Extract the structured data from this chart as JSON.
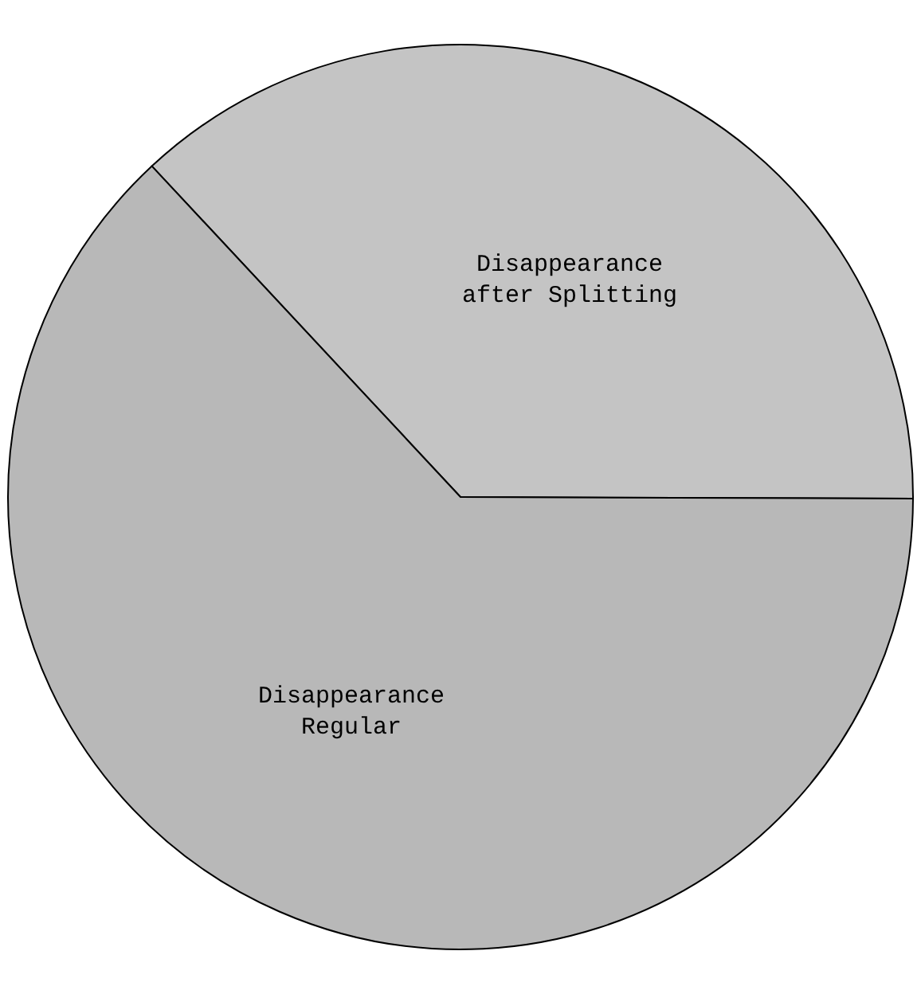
{
  "chart_data": {
    "type": "pie",
    "categories": [
      "Disappearance after Splitting",
      "Disappearance Regular"
    ],
    "values": [
      37,
      63
    ],
    "colors": [
      "#c4c4c4",
      "#b8b8b8"
    ]
  }
}
